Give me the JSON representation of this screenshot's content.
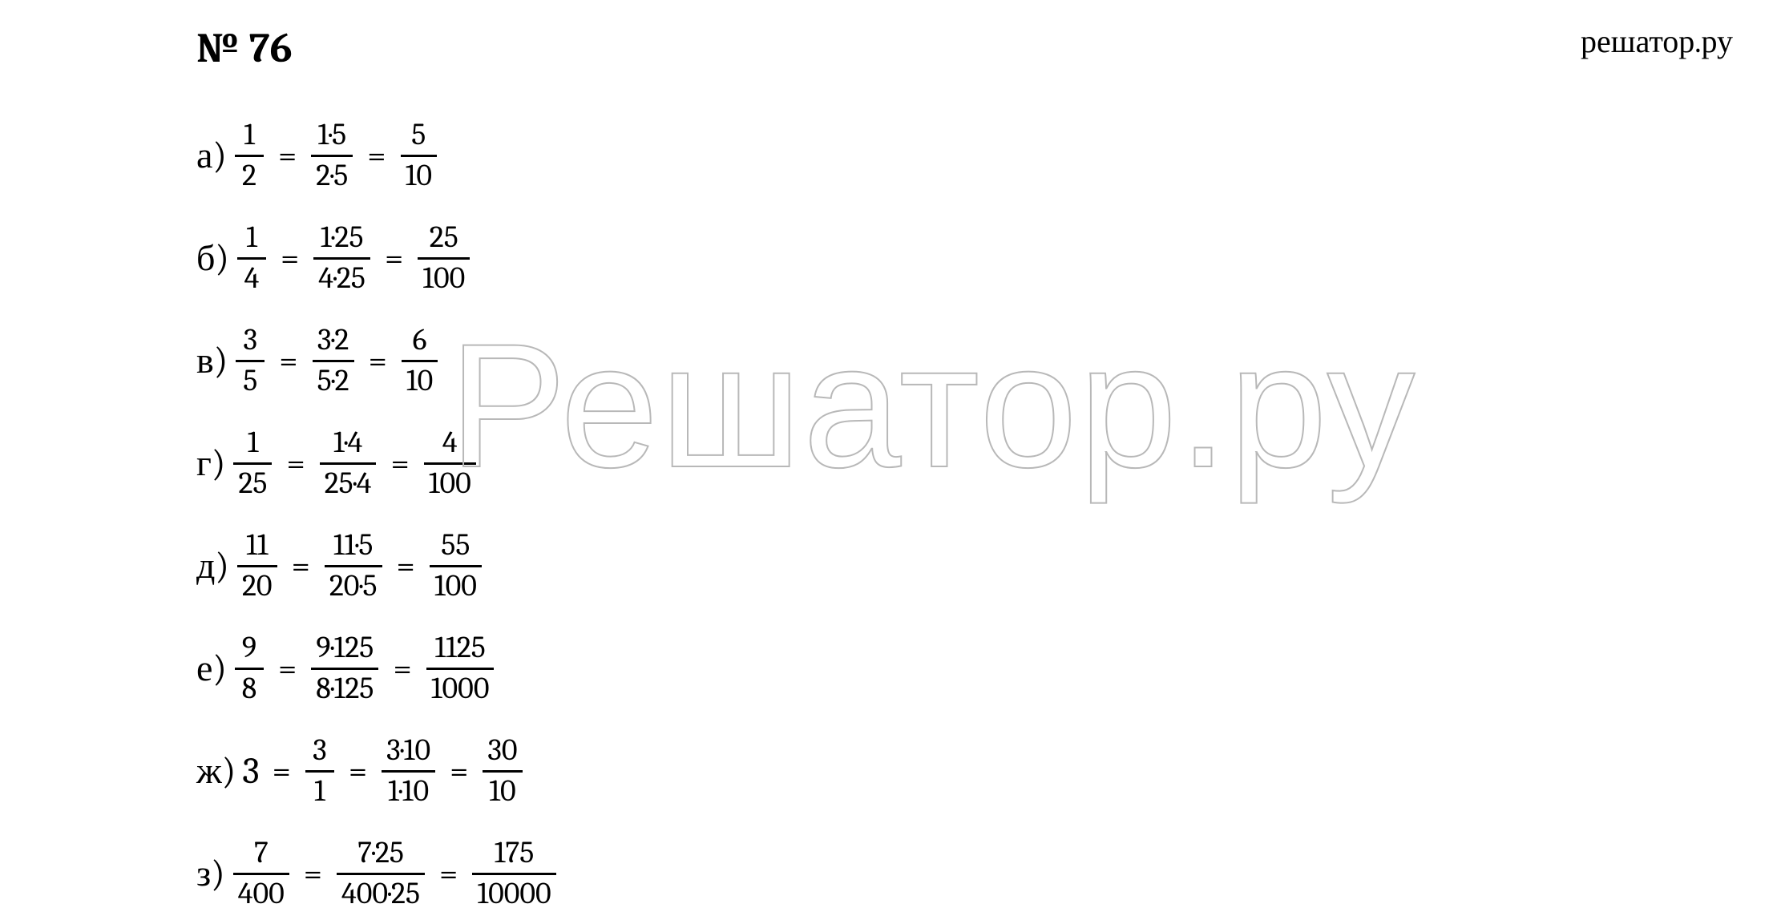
{
  "brand": "решатор.ру",
  "watermark": "Решатор.ру",
  "title": "№ 76",
  "text_color": "#000000",
  "background_color": "#ffffff",
  "watermark_stroke": "#b8b8b8",
  "title_fontsize": 52,
  "row_fontsize": 42,
  "frac_fontsize": 38,
  "rows": [
    {
      "label": "а)",
      "terms": [
        {
          "type": "frac",
          "num": "1",
          "den": "2"
        },
        {
          "type": "eq"
        },
        {
          "type": "frac",
          "num": "1·5",
          "den": "2·5"
        },
        {
          "type": "eq"
        },
        {
          "type": "frac",
          "num": "5",
          "den": "10"
        }
      ]
    },
    {
      "label": "б)",
      "terms": [
        {
          "type": "frac",
          "num": "1",
          "den": "4"
        },
        {
          "type": "eq"
        },
        {
          "type": "frac",
          "num": "1·25",
          "den": "4·25"
        },
        {
          "type": "eq"
        },
        {
          "type": "frac",
          "num": "25",
          "den": "100"
        }
      ]
    },
    {
      "label": "в)",
      "terms": [
        {
          "type": "frac",
          "num": "3",
          "den": "5"
        },
        {
          "type": "eq"
        },
        {
          "type": "frac",
          "num": "3·2",
          "den": "5·2"
        },
        {
          "type": "eq"
        },
        {
          "type": "frac",
          "num": "6",
          "den": "10"
        }
      ]
    },
    {
      "label": "г)",
      "terms": [
        {
          "type": "frac",
          "num": "1",
          "den": "25"
        },
        {
          "type": "eq"
        },
        {
          "type": "frac",
          "num": "1·4",
          "den": "25·4"
        },
        {
          "type": "eq"
        },
        {
          "type": "frac",
          "num": "4",
          "den": "100"
        }
      ]
    },
    {
      "label": "д)",
      "terms": [
        {
          "type": "frac",
          "num": "11",
          "den": "20"
        },
        {
          "type": "eq"
        },
        {
          "type": "frac",
          "num": "11·5",
          "den": "20·5"
        },
        {
          "type": "eq"
        },
        {
          "type": "frac",
          "num": "55",
          "den": "100"
        }
      ]
    },
    {
      "label": "е)",
      "terms": [
        {
          "type": "frac",
          "num": "9",
          "den": "8"
        },
        {
          "type": "eq"
        },
        {
          "type": "frac",
          "num": "9·125",
          "den": "8·125"
        },
        {
          "type": "eq"
        },
        {
          "type": "frac",
          "num": "1125",
          "den": "1000"
        }
      ]
    },
    {
      "label": "ж)",
      "terms": [
        {
          "type": "whole",
          "text": "3"
        },
        {
          "type": "eq"
        },
        {
          "type": "frac",
          "num": "3",
          "den": "1"
        },
        {
          "type": "eq"
        },
        {
          "type": "frac",
          "num": "3·10",
          "den": "1·10"
        },
        {
          "type": "eq"
        },
        {
          "type": "frac",
          "num": "30",
          "den": "10"
        }
      ]
    },
    {
      "label": "з)",
      "terms": [
        {
          "type": "frac",
          "num": "7",
          "den": "400"
        },
        {
          "type": "eq"
        },
        {
          "type": "frac",
          "num": "7·25",
          "den": "400·25"
        },
        {
          "type": "eq"
        },
        {
          "type": "frac",
          "num": "175",
          "den": "10000"
        }
      ]
    }
  ]
}
